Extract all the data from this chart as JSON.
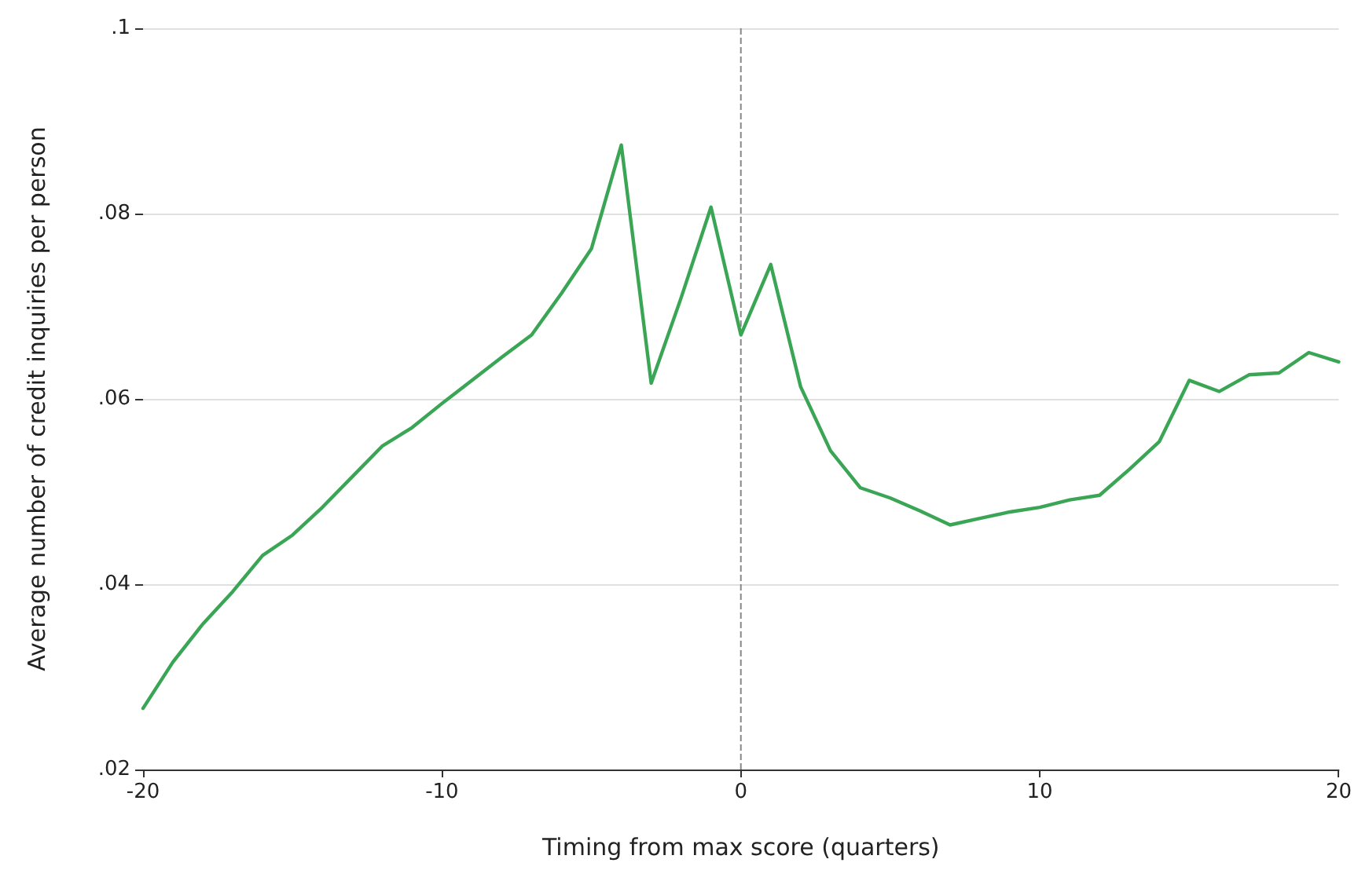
{
  "chart_data": {
    "type": "line",
    "xlabel": "Timing from max score (quarters)",
    "ylabel": "Average number of credit inquiries per person",
    "x": [
      -20,
      -19,
      -18,
      -17,
      -16,
      -15,
      -14,
      -13,
      -12,
      -11,
      -10,
      -9,
      -8,
      -7,
      -6,
      -5,
      -4,
      -3,
      -2,
      -1,
      0,
      1,
      2,
      3,
      4,
      5,
      6,
      7,
      8,
      9,
      10,
      11,
      12,
      13,
      14,
      15,
      16,
      17,
      18,
      19,
      20
    ],
    "series": [
      {
        "color": "#3aa655",
        "values": [
          0.0266,
          0.0316,
          0.0357,
          0.0392,
          0.0431,
          0.0453,
          0.0483,
          0.0516,
          0.0549,
          0.0569,
          0.0595,
          0.062,
          0.0645,
          0.0669,
          0.0714,
          0.0762,
          0.0874,
          0.0617,
          0.0709,
          0.0807,
          0.0669,
          0.0745,
          0.0613,
          0.0544,
          0.0504,
          0.0493,
          0.0479,
          0.0464,
          0.0471,
          0.0478,
          0.0483,
          0.0491,
          0.0496,
          0.0524,
          0.0554,
          0.062,
          0.0608,
          0.0626,
          0.0628,
          0.065,
          0.064
        ]
      }
    ],
    "xlim": [
      -20,
      20
    ],
    "xticks": [
      -20,
      -10,
      0,
      10,
      20
    ],
    "ylim": [
      0.02,
      0.1
    ],
    "yticks": [
      {
        "value": 0.02,
        "label": ".02"
      },
      {
        "value": 0.04,
        "label": ".04"
      },
      {
        "value": 0.06,
        "label": ".06"
      },
      {
        "value": 0.08,
        "label": ".08"
      },
      {
        "value": 0.1,
        "label": ".1"
      }
    ],
    "grid": "y",
    "marker": "none",
    "line_style": "solid",
    "ref_lines": [
      {
        "axis": "x",
        "value": 0,
        "color": "#888888",
        "line_style": "dashed"
      }
    ]
  }
}
